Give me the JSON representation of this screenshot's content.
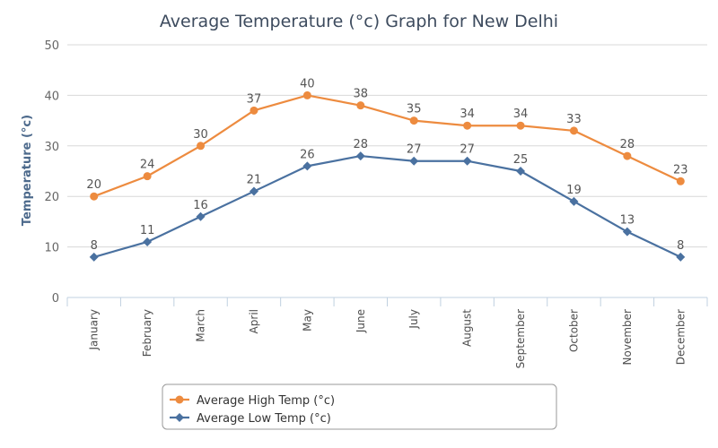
{
  "chart_data": {
    "type": "line",
    "title": "Average Temperature (°c) Graph for New Delhi",
    "xlabel": "",
    "ylabel": "Temperature (°c)",
    "ylim": [
      0,
      50
    ],
    "yticks": [
      0,
      10,
      20,
      30,
      40,
      50
    ],
    "grid": true,
    "legend_position": "bottom-left",
    "categories": [
      "January",
      "February",
      "March",
      "April",
      "May",
      "June",
      "July",
      "August",
      "September",
      "October",
      "November",
      "December"
    ],
    "series": [
      {
        "name": "Average High Temp (°c)",
        "color": "#ed8b3f",
        "marker": "circle",
        "values": [
          20,
          24,
          30,
          37,
          40,
          38,
          35,
          34,
          34,
          33,
          28,
          23
        ]
      },
      {
        "name": "Average Low Temp (°c)",
        "color": "#4a71a0",
        "marker": "diamond",
        "values": [
          8,
          11,
          16,
          21,
          26,
          28,
          27,
          27,
          25,
          19,
          13,
          8
        ]
      }
    ]
  }
}
